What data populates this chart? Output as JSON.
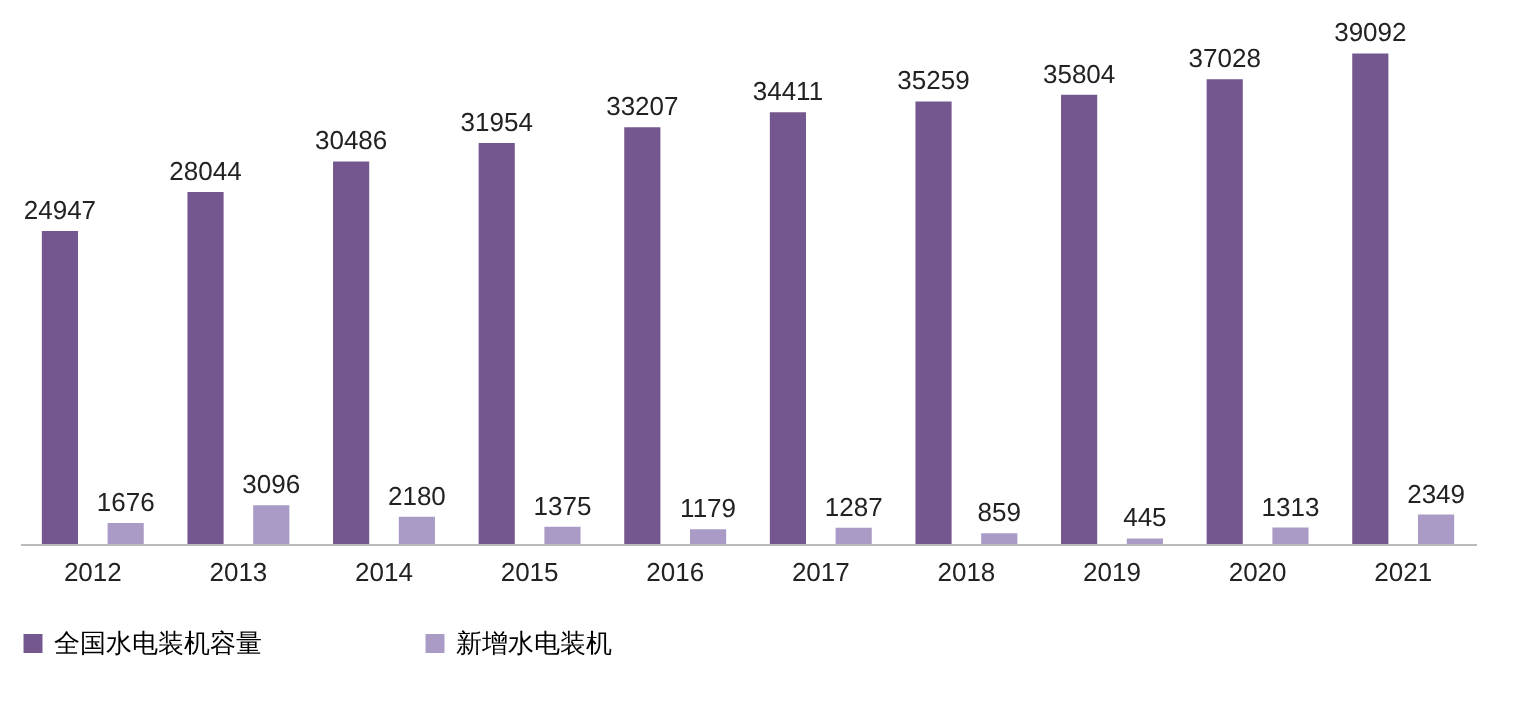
{
  "chart_data": {
    "type": "bar",
    "categories": [
      "2012",
      "2013",
      "2014",
      "2015",
      "2016",
      "2017",
      "2018",
      "2019",
      "2020",
      "2021"
    ],
    "series": [
      {
        "name": "全国水电装机容量",
        "color": "#74578f",
        "values": [
          24947,
          28044,
          30486,
          31954,
          33207,
          34411,
          35259,
          35804,
          37028,
          39092
        ]
      },
      {
        "name": "新增水电装机",
        "color": "#a99bc5",
        "values": [
          1676,
          3096,
          2180,
          1375,
          1179,
          1287,
          859,
          445,
          1313,
          2349
        ]
      }
    ],
    "data_labels": true,
    "legend": "bottom"
  }
}
